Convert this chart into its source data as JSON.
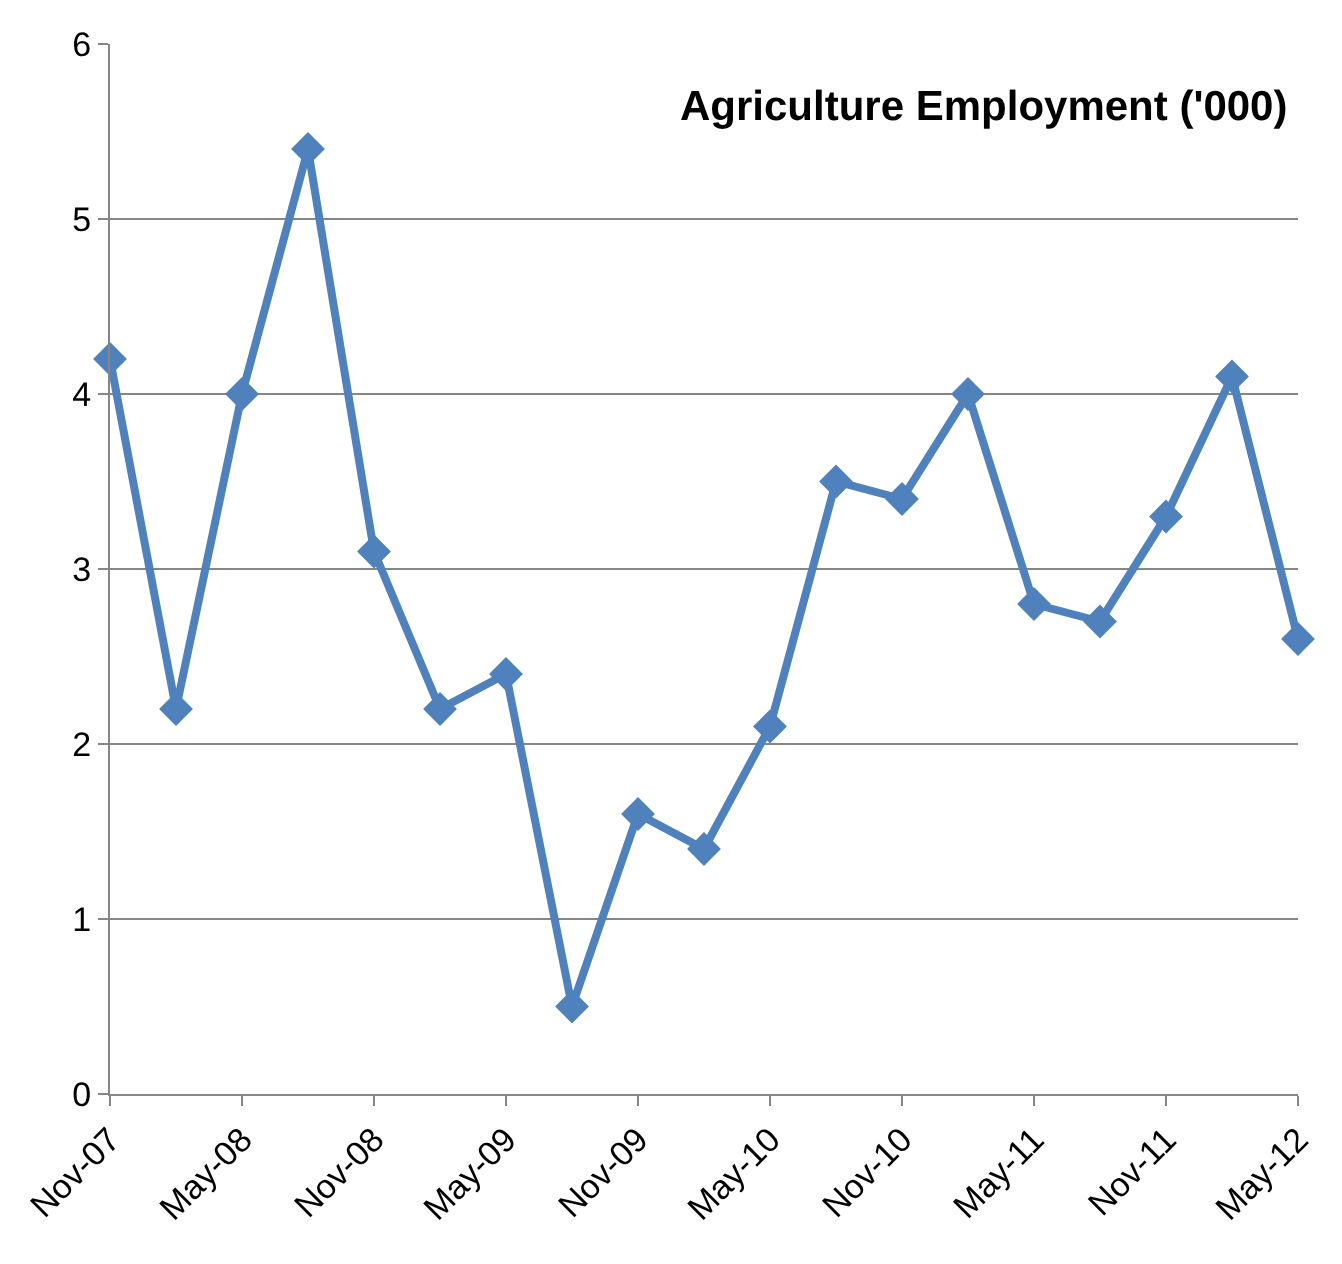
{
  "chart_data": {
    "type": "line",
    "title": "Agriculture Employment ('000)",
    "categories": [
      "Nov-07",
      null,
      "May-08",
      null,
      "Nov-08",
      null,
      "May-09",
      null,
      "Nov-09",
      null,
      "May-10",
      null,
      "Nov-10",
      null,
      "May-11",
      null,
      "Nov-11",
      null,
      "May-12"
    ],
    "series": [
      {
        "color": "#4f81bd",
        "values": [
          4.2,
          2.2,
          4.0,
          5.4,
          3.1,
          2.2,
          2.4,
          0.5,
          1.6,
          1.4,
          2.1,
          3.5,
          3.4,
          4.0,
          2.8,
          2.7,
          3.3,
          4.1,
          2.6
        ]
      }
    ],
    "ylim": [
      0,
      6
    ],
    "yticks": [
      0,
      1,
      2,
      3,
      4,
      5,
      6
    ],
    "grid": "y",
    "legend": false,
    "marker": "diamond",
    "line_style": "solid"
  }
}
